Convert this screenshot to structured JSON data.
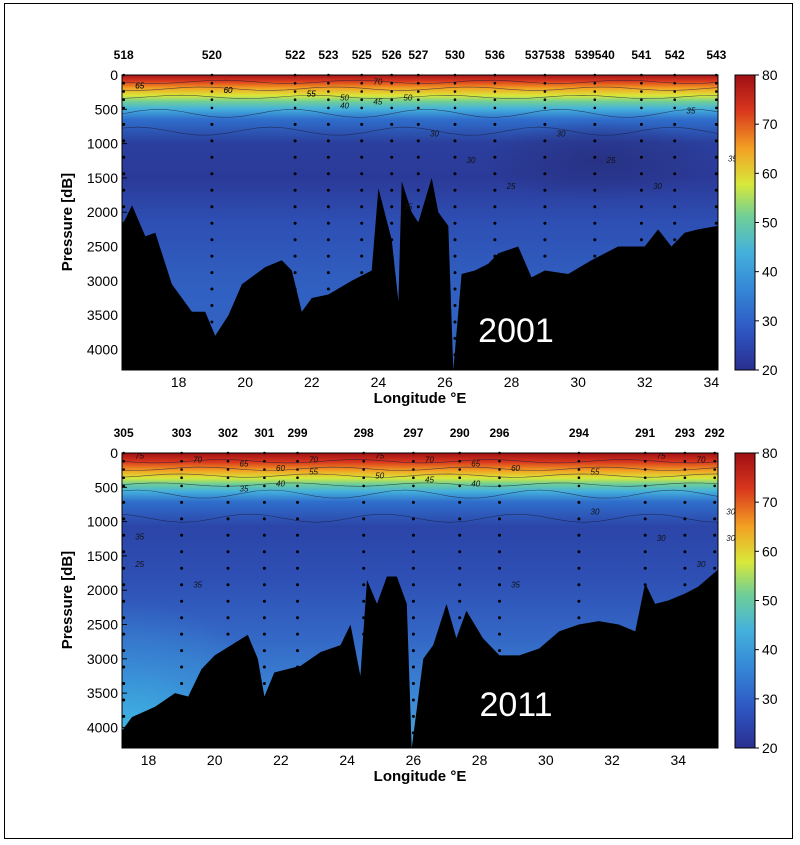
{
  "chart_data": [
    {
      "type": "heatmap",
      "annotation": "2001",
      "xlabel": "Longitude °E",
      "ylabel": "Pressure [dB]",
      "xlim": [
        16.3,
        34.2
      ],
      "ylim": [
        4300,
        0
      ],
      "x_ticks": [
        "18",
        "20",
        "22",
        "24",
        "26",
        "28",
        "30",
        "32",
        "34"
      ],
      "y_ticks": [
        "0",
        "500",
        "1000",
        "1500",
        "2000",
        "2500",
        "3000",
        "3500",
        "4000"
      ],
      "colorbar_ticks": [
        "20",
        "30",
        "40",
        "50",
        "60",
        "70",
        "80"
      ],
      "colorbar_range": [
        20,
        80
      ],
      "stations": [
        {
          "label": "518",
          "lon": 16.35
        },
        {
          "label": "520",
          "lon": 19.0
        },
        {
          "label": "522",
          "lon": 21.5
        },
        {
          "label": "523",
          "lon": 22.5
        },
        {
          "label": "525",
          "lon": 23.5
        },
        {
          "label": "526",
          "lon": 24.4
        },
        {
          "label": "527",
          "lon": 25.2
        },
        {
          "label": "530",
          "lon": 26.3
        },
        {
          "label": "536",
          "lon": 27.5
        },
        {
          "label": "537538",
          "lon": 29.0
        },
        {
          "label": "539540",
          "lon": 30.5
        },
        {
          "label": "541",
          "lon": 31.9
        },
        {
          "label": "542",
          "lon": 32.9
        },
        {
          "label": "543",
          "lon": 34.15
        }
      ],
      "contour_labels": [
        "65",
        "60",
        "55",
        "50",
        "45",
        "35",
        "30",
        "30",
        "25",
        "30",
        "25",
        "30",
        "35",
        "35",
        "65",
        "60",
        "55",
        "40",
        "70",
        "50"
      ],
      "contours": [
        {
          "level": 65,
          "depth": 100
        },
        {
          "level": 55,
          "depth": 200
        },
        {
          "level": 45,
          "depth": 320
        },
        {
          "level": 35,
          "depth": 560
        },
        {
          "level": 30,
          "depth": 820
        }
      ],
      "bathymetry": [
        [
          16.3,
          2200
        ],
        [
          16.6,
          1900
        ],
        [
          17.0,
          2350
        ],
        [
          17.3,
          2300
        ],
        [
          17.8,
          3050
        ],
        [
          18.4,
          3450
        ],
        [
          18.8,
          3450
        ],
        [
          19.1,
          3800
        ],
        [
          19.5,
          3500
        ],
        [
          19.9,
          3050
        ],
        [
          20.6,
          2800
        ],
        [
          21.1,
          2700
        ],
        [
          21.4,
          2850
        ],
        [
          21.7,
          3450
        ],
        [
          22.0,
          3250
        ],
        [
          22.5,
          3200
        ],
        [
          23.2,
          3000
        ],
        [
          23.8,
          2850
        ],
        [
          24.0,
          1650
        ],
        [
          24.4,
          2400
        ],
        [
          24.6,
          3300
        ],
        [
          24.7,
          1550
        ],
        [
          25.0,
          2000
        ],
        [
          25.2,
          2150
        ],
        [
          25.6,
          1500
        ],
        [
          25.8,
          2000
        ],
        [
          26.1,
          2200
        ],
        [
          26.25,
          4300
        ],
        [
          26.5,
          2900
        ],
        [
          26.9,
          2850
        ],
        [
          27.3,
          2750
        ],
        [
          27.6,
          2600
        ],
        [
          28.2,
          2500
        ],
        [
          28.6,
          2950
        ],
        [
          29.0,
          2850
        ],
        [
          29.7,
          2900
        ],
        [
          30.4,
          2700
        ],
        [
          31.2,
          2500
        ],
        [
          32.0,
          2500
        ],
        [
          32.4,
          2250
        ],
        [
          32.8,
          2500
        ],
        [
          33.2,
          2300
        ],
        [
          33.6,
          2250
        ],
        [
          34.2,
          2200
        ]
      ]
    },
    {
      "type": "heatmap",
      "annotation": "2011",
      "xlabel": "Longitude °E",
      "ylabel": "Pressure [dB]",
      "xlim": [
        17.2,
        35.2
      ],
      "ylim": [
        4300,
        0
      ],
      "x_ticks": [
        "18",
        "20",
        "22",
        "24",
        "26",
        "28",
        "30",
        "32",
        "34"
      ],
      "y_ticks": [
        "0",
        "500",
        "1000",
        "1500",
        "2000",
        "2500",
        "3000",
        "3500",
        "4000"
      ],
      "colorbar_ticks": [
        "20",
        "30",
        "40",
        "50",
        "60",
        "70",
        "80"
      ],
      "colorbar_range": [
        20,
        80
      ],
      "stations": [
        {
          "label": "305",
          "lon": 17.25
        },
        {
          "label": "303",
          "lon": 19.0
        },
        {
          "label": "302",
          "lon": 20.4
        },
        {
          "label": "301",
          "lon": 21.5
        },
        {
          "label": "299",
          "lon": 22.5
        },
        {
          "label": "298",
          "lon": 24.5
        },
        {
          "label": "297",
          "lon": 26.0
        },
        {
          "label": "290",
          "lon": 27.4
        },
        {
          "label": "296",
          "lon": 28.6
        },
        {
          "label": "294",
          "lon": 31.0
        },
        {
          "label": "291",
          "lon": 33.0
        },
        {
          "label": "293",
          "lon": 34.2
        },
        {
          "label": "292",
          "lon": 35.1
        }
      ],
      "contour_labels": [
        "75",
        "70",
        "65",
        "60",
        "55",
        "50",
        "45",
        "40",
        "35",
        "30",
        "30",
        "30",
        "30",
        "35",
        "35",
        "35",
        "40",
        "70",
        "75",
        "70",
        "65",
        "60",
        "55",
        "75",
        "70",
        "30",
        "25"
      ],
      "contours": [
        {
          "level": 70,
          "depth": 120
        },
        {
          "level": 60,
          "depth": 230
        },
        {
          "level": 50,
          "depth": 330
        },
        {
          "level": 40,
          "depth": 460
        },
        {
          "level": 35,
          "depth": 600
        },
        {
          "level": 30,
          "depth": 950
        }
      ],
      "bathymetry": [
        [
          17.2,
          4050
        ],
        [
          17.5,
          3850
        ],
        [
          18.2,
          3700
        ],
        [
          18.8,
          3500
        ],
        [
          19.2,
          3550
        ],
        [
          19.6,
          3150
        ],
        [
          20.0,
          2950
        ],
        [
          20.5,
          2800
        ],
        [
          21.0,
          2650
        ],
        [
          21.3,
          3000
        ],
        [
          21.5,
          3550
        ],
        [
          21.8,
          3200
        ],
        [
          22.6,
          3100
        ],
        [
          23.2,
          2900
        ],
        [
          23.8,
          2800
        ],
        [
          24.1,
          2500
        ],
        [
          24.4,
          3250
        ],
        [
          24.6,
          1850
        ],
        [
          24.9,
          2200
        ],
        [
          25.2,
          1800
        ],
        [
          25.5,
          1800
        ],
        [
          25.8,
          2200
        ],
        [
          25.95,
          4300
        ],
        [
          26.3,
          3000
        ],
        [
          26.6,
          2800
        ],
        [
          27.0,
          2200
        ],
        [
          27.3,
          2700
        ],
        [
          27.6,
          2300
        ],
        [
          28.1,
          2700
        ],
        [
          28.6,
          2950
        ],
        [
          29.2,
          2950
        ],
        [
          29.8,
          2850
        ],
        [
          30.4,
          2600
        ],
        [
          31.0,
          2500
        ],
        [
          31.6,
          2450
        ],
        [
          32.2,
          2500
        ],
        [
          32.7,
          2600
        ],
        [
          33.0,
          1900
        ],
        [
          33.3,
          2200
        ],
        [
          33.7,
          2150
        ],
        [
          34.2,
          2050
        ],
        [
          34.6,
          1950
        ],
        [
          35.2,
          1700
        ]
      ]
    }
  ],
  "colormap": [
    "#2a2f8f",
    "#2e55c2",
    "#3486d6",
    "#45b1dc",
    "#6fcf97",
    "#d8e83a",
    "#f3a123",
    "#d8361d",
    "#a00f14"
  ]
}
